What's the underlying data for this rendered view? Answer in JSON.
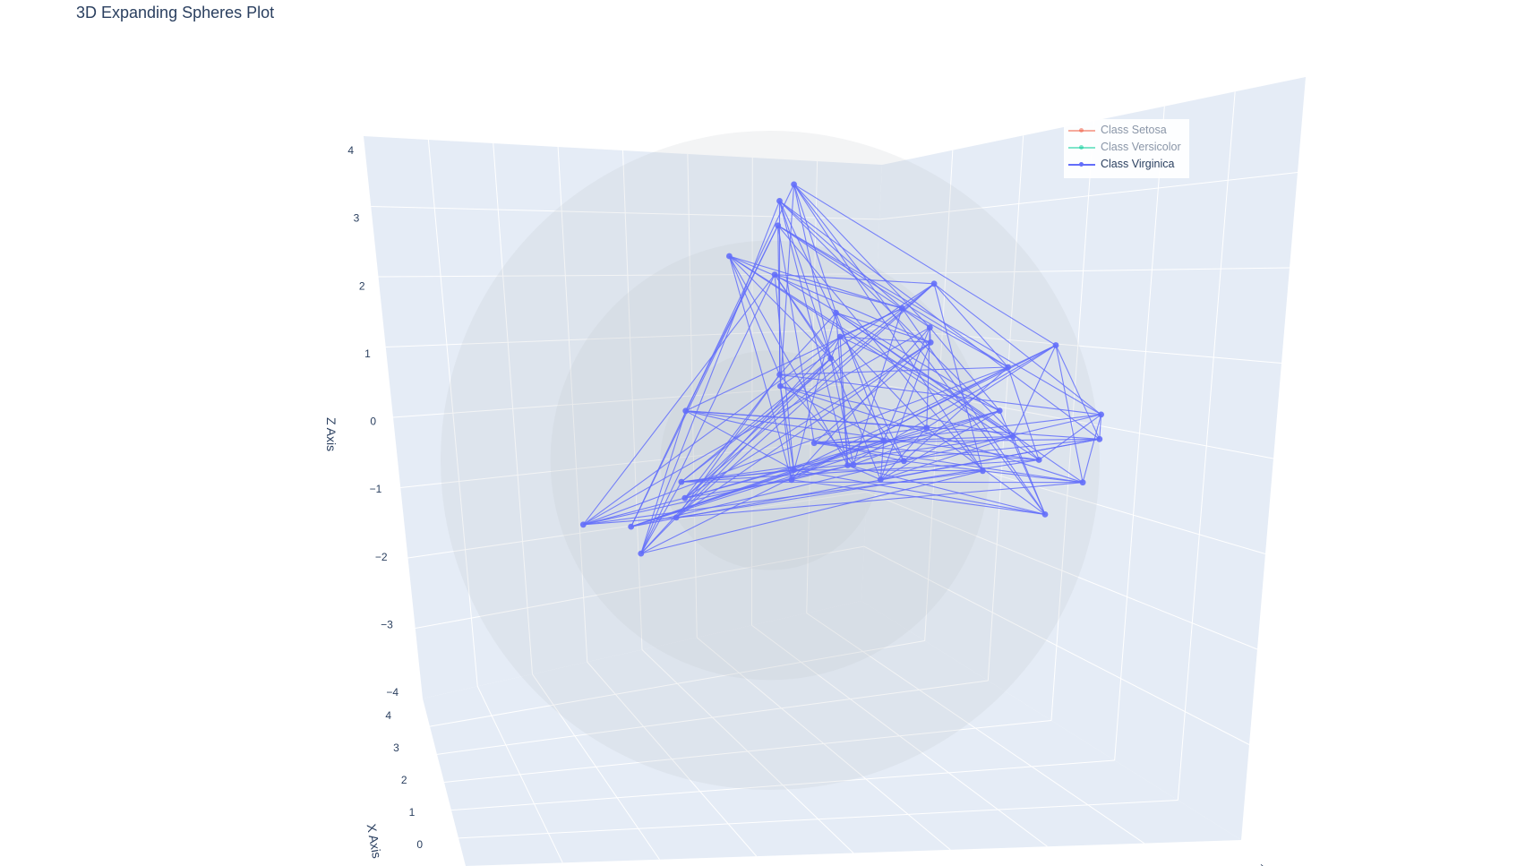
{
  "title": "3D Expanding Spheres Plot",
  "chart_data": {
    "type": "scatter3d",
    "title": "3D Expanding Spheres Plot",
    "axes": {
      "x": {
        "title": "X Axis",
        "ticks": [
          "0",
          "1",
          "2",
          "3",
          "4"
        ]
      },
      "y": {
        "title": "",
        "ticks": [
          "−4"
        ]
      },
      "z": {
        "title": "Z Axis",
        "ticks": [
          "4",
          "3",
          "2",
          "1",
          "0",
          "−1",
          "−2",
          "−3",
          "−4"
        ],
        "range": [
          -4,
          4
        ]
      }
    },
    "spheres": {
      "count": 3,
      "color": "#bfc2c8"
    },
    "legend": {
      "placement": "top-right",
      "items": [
        {
          "name": "Class Setosa",
          "color": "#ef553b",
          "visible": false
        },
        {
          "name": "Class Versicolor",
          "color": "#00cc96",
          "visible": false
        },
        {
          "name": "Class Virginica",
          "color": "#636efa",
          "visible": true
        }
      ]
    },
    "series": [
      {
        "name": "Class Virginica",
        "mode": "lines+markers",
        "color": "#636efa",
        "points": [
          [
            0.2,
            -0.3,
            3.8
          ],
          [
            2.6,
            0.8,
            0.1
          ],
          [
            -2.9,
            -0.4,
            -1.7
          ],
          [
            1.7,
            1.1,
            2.1
          ],
          [
            -0.3,
            0.4,
            3.2
          ],
          [
            3.5,
            -0.6,
            1.6
          ],
          [
            0.5,
            -1.2,
            -0.6
          ],
          [
            -0.6,
            1.3,
            0.9
          ],
          [
            2.1,
            0.2,
            2.7
          ],
          [
            -1.2,
            -0.9,
            -1.1
          ],
          [
            1.2,
            0.6,
            0.3
          ],
          [
            4.4,
            0.7,
            1.2
          ],
          [
            -0.2,
            0.2,
            1.0
          ],
          [
            0.9,
            -0.5,
            2.0
          ],
          [
            4.5,
            -0.3,
            0.1
          ],
          [
            -2.0,
            0.9,
            -1.3
          ],
          [
            1.6,
            1.4,
            1.9
          ],
          [
            0.8,
            -1.1,
            0.0
          ],
          [
            3.4,
            0.9,
            0.4
          ],
          [
            -0.8,
            -0.2,
            2.6
          ],
          [
            2.9,
            1.2,
            0.7
          ],
          [
            -1.7,
            0.3,
            -0.8
          ],
          [
            0.3,
            0.9,
            1.4
          ],
          [
            1.9,
            -1.4,
            -0.4
          ],
          [
            4.6,
            0.1,
            0.8
          ],
          [
            -0.5,
            1.0,
            3.6
          ],
          [
            1.0,
            -0.3,
            -0.2
          ],
          [
            3.8,
            0.5,
            2.1
          ],
          [
            -2.6,
            1.1,
            -1.9
          ],
          [
            0.7,
            0.2,
            1.7
          ],
          [
            2.4,
            -0.9,
            0.5
          ],
          [
            -1.3,
            -0.6,
            0.2
          ],
          [
            1.4,
            0.8,
            2.3
          ],
          [
            4.2,
            -1.0,
            -0.5
          ],
          [
            -0.4,
            1.3,
            -0.3
          ],
          [
            0.1,
            -0.8,
            2.4
          ],
          [
            3.0,
            0.4,
            1.0
          ],
          [
            -2.3,
            -0.1,
            -1.6
          ],
          [
            1.8,
            -0.2,
            0.0
          ],
          [
            0.6,
            1.0,
            -0.1
          ]
        ]
      }
    ]
  }
}
